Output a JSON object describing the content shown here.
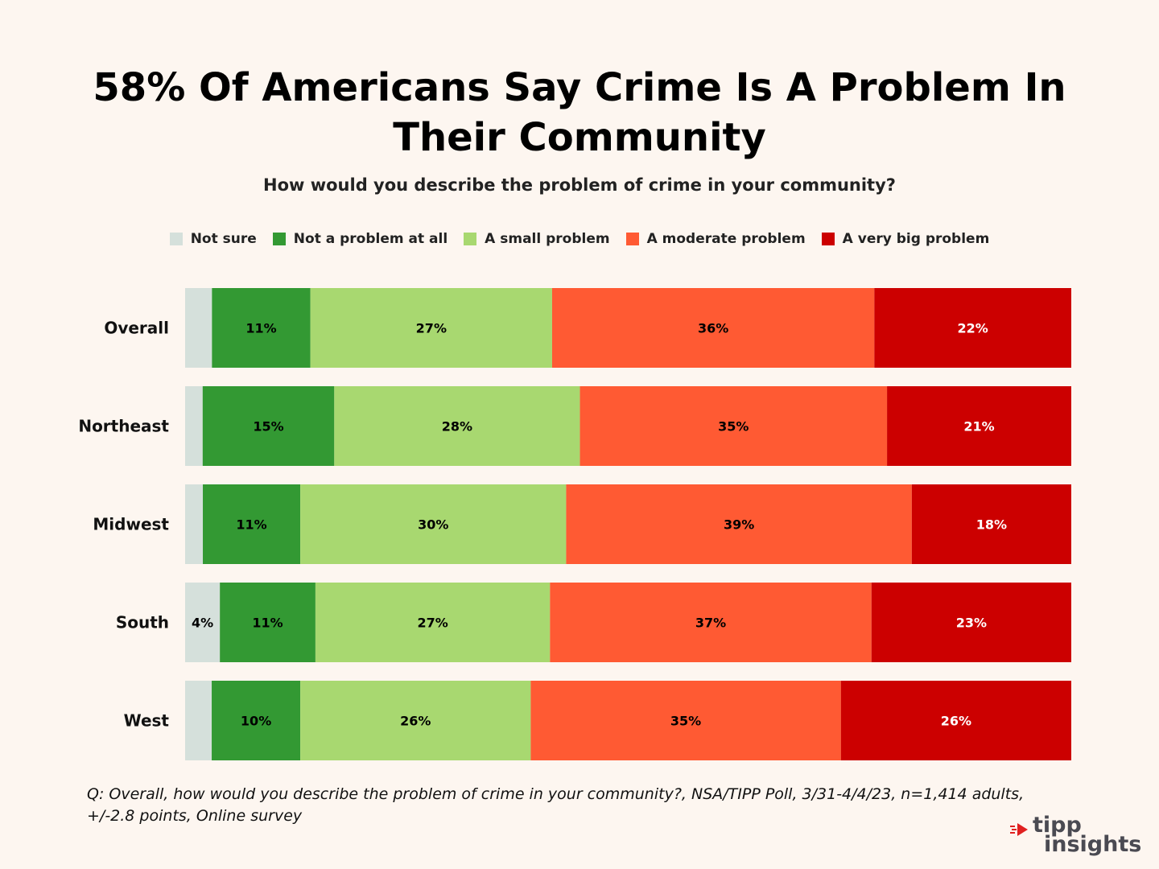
{
  "header": {
    "title": "58% Of Americans Say Crime Is A Problem In Their Community",
    "subtitle": "How would you describe the problem of crime in your community?"
  },
  "footnote": "Q: Overall, how would you describe the problem of crime in your community?, NSA/TIPP Poll, 3/31-4/4/23, n=1,414 adults, +/-2.8 points, Online survey",
  "logo": {
    "line1": "tipp",
    "line2": "insights",
    "mark_icon": "tipp-arrow-icon"
  },
  "chart_data": {
    "type": "bar",
    "orientation": "horizontal-stacked-100",
    "title": "58% Of Americans Say Crime Is A Problem In Their Community",
    "subtitle": "How would you describe the problem of crime in your community?",
    "legend_position": "top-center",
    "categories": [
      "Overall",
      "Northeast",
      "Midwest",
      "South",
      "West"
    ],
    "series": [
      {
        "name": "Not sure",
        "color": "#d5e0db",
        "values": [
          3,
          2,
          2,
          4,
          3
        ],
        "labels": [
          "",
          "",
          "",
          "4%",
          ""
        ],
        "label_color": "#000000"
      },
      {
        "name": "Not a problem at all",
        "color": "#339933",
        "values": [
          11,
          15,
          11,
          11,
          10
        ],
        "labels": [
          "11%",
          "15%",
          "11%",
          "11%",
          "10%"
        ],
        "label_color": "#000000"
      },
      {
        "name": "A small problem",
        "color": "#a8d870",
        "values": [
          27,
          28,
          30,
          27,
          26
        ],
        "labels": [
          "27%",
          "28%",
          "30%",
          "27%",
          "26%"
        ],
        "label_color": "#000000"
      },
      {
        "name": "A moderate problem",
        "color": "#ff5a33",
        "values": [
          36,
          35,
          39,
          37,
          35
        ],
        "labels": [
          "36%",
          "35%",
          "39%",
          "37%",
          "35%"
        ],
        "label_color": "#000000"
      },
      {
        "name": "A very big problem",
        "color": "#cc0000",
        "values": [
          22,
          21,
          18,
          23,
          26
        ],
        "labels": [
          "22%",
          "21%",
          "18%",
          "23%",
          "26%"
        ],
        "label_color": "#ffffff"
      }
    ]
  }
}
